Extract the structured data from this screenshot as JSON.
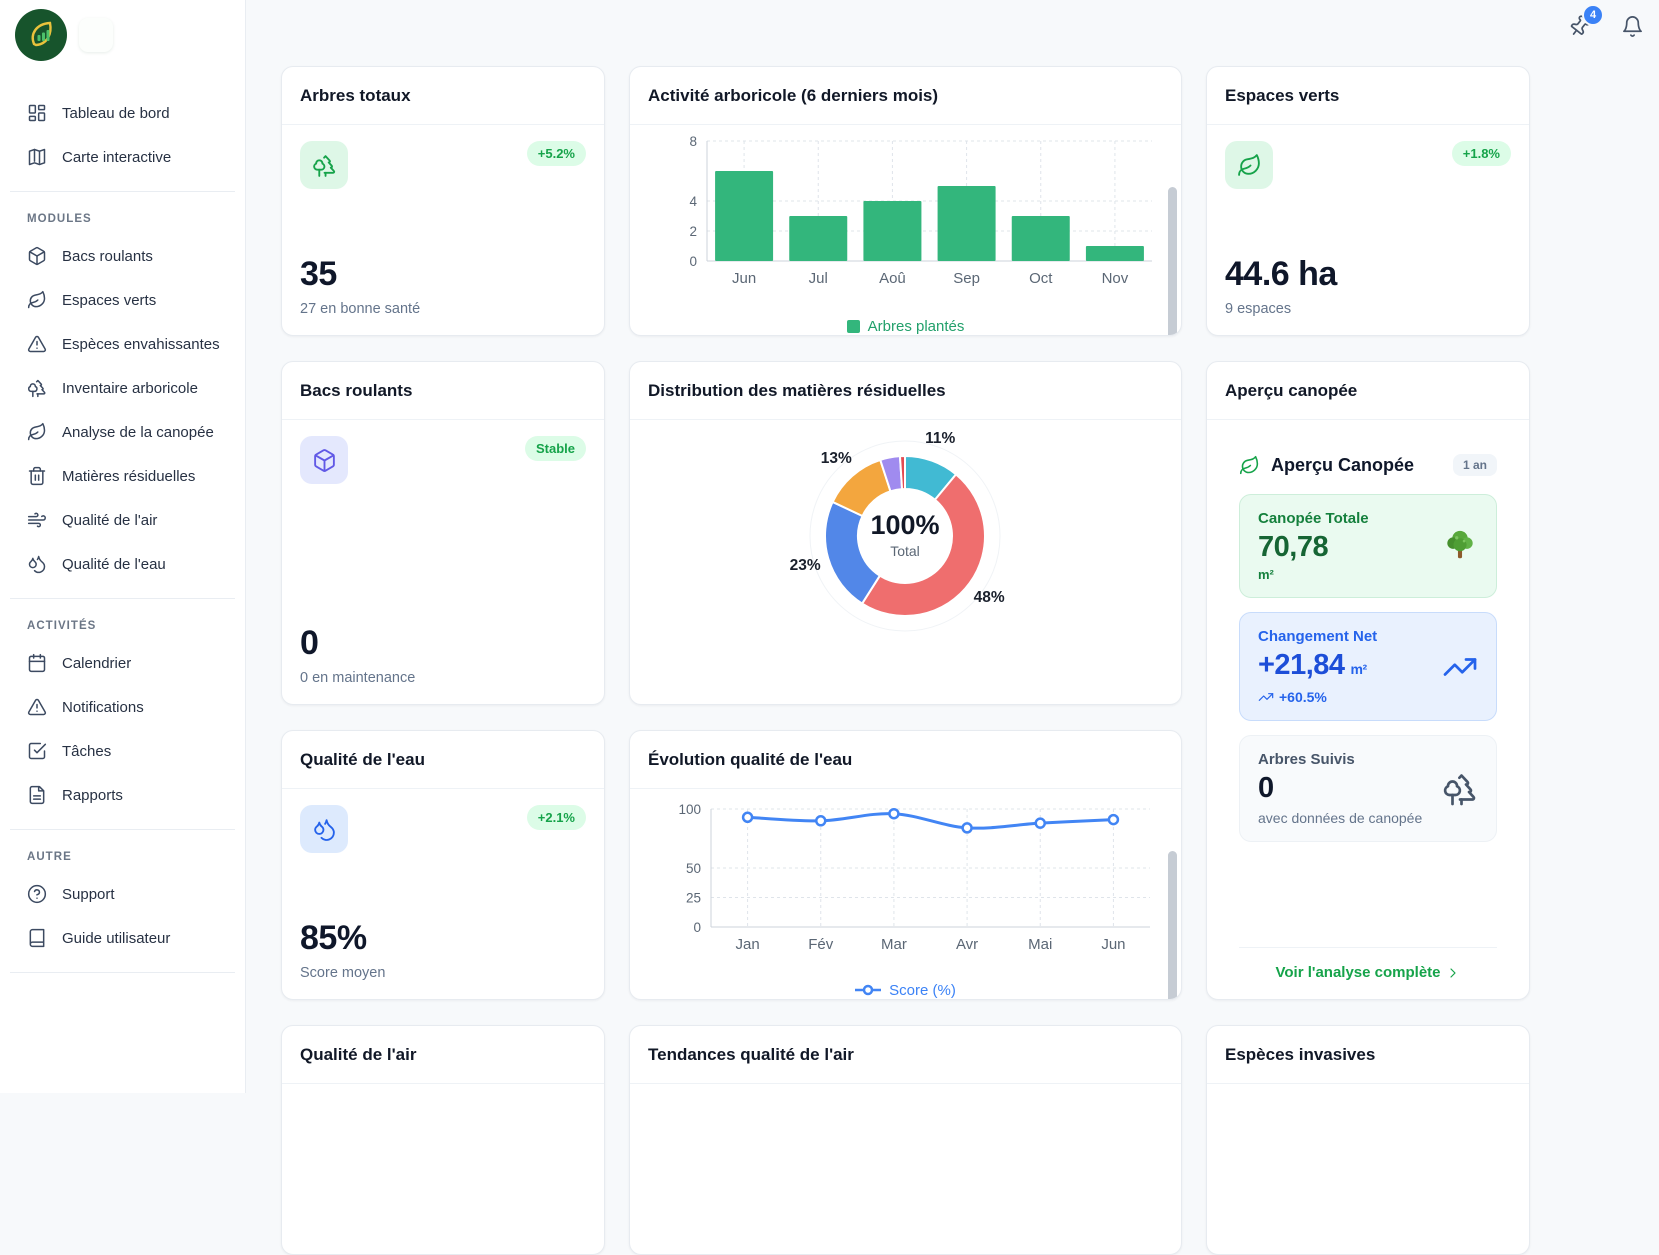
{
  "colors": {
    "accent_green": "#16a34a",
    "accent_blue": "#2563eb",
    "notification_badge_blue": "#3b82f6",
    "bar_green": "#33b67c",
    "line_blue": "#4285f4"
  },
  "topbar": {
    "pin_badge": "4"
  },
  "sidebar": {
    "primary": [
      {
        "name": "tableau-de-bord",
        "label": "Tableau de bord",
        "icon": "dashboard"
      },
      {
        "name": "carte-interactive",
        "label": "Carte interactive",
        "icon": "map"
      }
    ],
    "sections": [
      {
        "title": "MODULES",
        "items": [
          {
            "name": "bacs-roulants",
            "label": "Bacs roulants",
            "icon": "package"
          },
          {
            "name": "espaces-verts",
            "label": "Espaces verts",
            "icon": "leaf"
          },
          {
            "name": "especes-envahissantes",
            "label": "Espèces envahissantes",
            "icon": "alert-triangle"
          },
          {
            "name": "inventaire-arboricole",
            "label": "Inventaire arboricole",
            "icon": "trees"
          },
          {
            "name": "analyse-canopee",
            "label": "Analyse de la canopée",
            "icon": "leaf"
          },
          {
            "name": "matieres-residuelles",
            "label": "Matières résiduelles",
            "icon": "trash"
          },
          {
            "name": "qualite-air",
            "label": "Qualité de l'air",
            "icon": "wind"
          },
          {
            "name": "qualite-eau",
            "label": "Qualité de l'eau",
            "icon": "droplets"
          }
        ]
      },
      {
        "title": "ACTIVITÉS",
        "items": [
          {
            "name": "calendrier",
            "label": "Calendrier",
            "icon": "calendar"
          },
          {
            "name": "notifications",
            "label": "Notifications",
            "icon": "alert-triangle"
          },
          {
            "name": "taches",
            "label": "Tâches",
            "icon": "check-square"
          },
          {
            "name": "rapports",
            "label": "Rapports",
            "icon": "file-text"
          }
        ]
      },
      {
        "title": "AUTRE",
        "items": [
          {
            "name": "support",
            "label": "Support",
            "icon": "help-circle"
          },
          {
            "name": "guide-utilisateur",
            "label": "Guide utilisateur",
            "icon": "book"
          }
        ]
      }
    ]
  },
  "cards": {
    "arbres_totaux": {
      "title": "Arbres totaux",
      "badge": "+5.2%",
      "value": "35",
      "subtitle": "27 en bonne santé"
    },
    "activite": {
      "title": "Activité arboricole (6 derniers mois)"
    },
    "espaces_verts": {
      "title": "Espaces verts",
      "badge": "+1.8%",
      "value": "44.6 ha",
      "subtitle": "9 espaces"
    },
    "bacs": {
      "title": "Bacs roulants",
      "badge": "Stable",
      "value": "0",
      "subtitle": "0 en maintenance"
    },
    "distribution": {
      "title": "Distribution des matières résiduelles"
    },
    "canopee": {
      "title": "Aperçu canopée",
      "heading": "Aperçu Canopée",
      "period": "1 an",
      "total": {
        "label": "Canopée Totale",
        "value": "70,78",
        "unit": "m²"
      },
      "net": {
        "label": "Changement Net",
        "value": "+21,84",
        "unit": "m²",
        "delta": "+60.5%"
      },
      "suivis": {
        "label": "Arbres Suivis",
        "value": "0",
        "note": "avec données de canopée"
      },
      "link": "Voir l'analyse complète"
    },
    "eau": {
      "title": "Qualité de l'eau",
      "badge": "+2.1%",
      "value": "85%",
      "subtitle": "Score moyen"
    },
    "evolution": {
      "title": "Évolution qualité de l'eau"
    },
    "air": {
      "title": "Qualité de l'air"
    },
    "tendances": {
      "title": "Tendances qualité de l'air"
    },
    "invasives": {
      "title": "Espèces invasives"
    }
  },
  "chart_data": [
    {
      "type": "bar",
      "title": "Activité arboricole (6 derniers mois)",
      "categories": [
        "Jun",
        "Jul",
        "Aoû",
        "Sep",
        "Oct",
        "Nov"
      ],
      "values": [
        6,
        3,
        4,
        5,
        3,
        1
      ],
      "series_label": "Arbres plantés",
      "color": "#33b67c",
      "ylim": [
        0,
        8
      ],
      "yticks_shown": [
        0,
        2,
        4,
        8
      ],
      "grid": "dashed",
      "legend_position": "bottom"
    },
    {
      "type": "pie",
      "title": "Distribution des matières résiduelles",
      "style": "doughnut",
      "center_label": "100%",
      "center_sub": "Total",
      "slices": [
        {
          "pct": 11,
          "color": "#41bad3"
        },
        {
          "pct": 48,
          "color": "#ef6e6e"
        },
        {
          "pct": 23,
          "color": "#5287e8"
        },
        {
          "pct": 13,
          "color": "#f3a63e"
        },
        {
          "pct": 4,
          "color": "#a08bef"
        },
        {
          "pct": 1,
          "color": "#e34b52"
        }
      ],
      "label_min_pct": 10
    },
    {
      "type": "line",
      "title": "Évolution qualité de l'eau",
      "x": [
        "Jan",
        "Fév",
        "Mar",
        "Avr",
        "Mai",
        "Jun"
      ],
      "values": [
        93,
        90,
        96,
        84,
        88,
        91
      ],
      "series_label": "Score (%)",
      "color": "#4285f4",
      "ylim": [
        0,
        100
      ],
      "yticks_shown": [
        0,
        25,
        50,
        100
      ],
      "grid": "dashed",
      "legend_position": "bottom"
    }
  ]
}
